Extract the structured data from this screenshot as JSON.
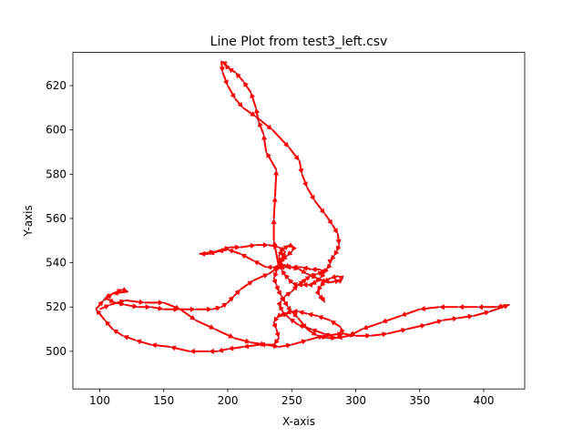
{
  "chart_data": {
    "type": "line",
    "title": "Line Plot from test3_left.csv",
    "xlabel": "X-axis",
    "ylabel": "Y-axis",
    "xlim": [
      79,
      432
    ],
    "ylim": [
      483,
      635
    ],
    "xticks": [
      100,
      150,
      200,
      250,
      300,
      350,
      400
    ],
    "yticks": [
      500,
      520,
      540,
      560,
      580,
      600,
      620
    ],
    "grid": false,
    "legend": "none",
    "line_color": "#1f77b4",
    "arrow_color": "#ff0000",
    "series": [
      {
        "x": [
          100,
          108,
          120,
          135,
          150,
          163,
          175,
          190,
          205,
          218,
          230,
          240,
          250,
          262,
          275,
          290,
          300,
          312,
          325,
          340,
          355,
          368,
          380,
          392,
          405,
          420,
          410,
          395,
          380,
          365,
          350,
          335,
          320,
          305,
          295,
          285,
          275,
          265,
          255,
          248,
          243,
          240,
          242,
          245,
          250,
          255,
          260,
          262,
          265,
          270,
          275,
          272,
          265,
          258,
          250,
          245,
          240,
          238,
          235,
          230,
          220,
          210,
          200,
          192,
          185,
          178,
          190,
          202,
          210,
          222,
          232,
          240,
          245,
          242,
          240,
          238,
          236,
          238,
          240,
          242,
          245,
          247,
          250,
          255,
          262,
          270,
          278,
          285,
          290,
          288,
          280,
          270,
          262,
          255,
          250,
          245,
          240,
          238,
          236,
          238,
          240,
          236,
          225,
          212,
          200,
          192,
          185,
          170,
          155,
          140,
          128,
          118,
          110,
          104,
          97,
          103,
          110,
          118,
          122,
          110,
          104,
          112,
          120,
          130,
          140,
          150,
          162,
          175,
          188,
          195,
          200,
          205,
          210,
          220,
          232,
          240,
          236,
          236,
          237,
          238,
          230,
          228,
          224,
          222,
          218,
          212,
          206,
          200,
          198,
          195,
          196,
          200,
          206,
          212,
          222,
          235,
          248,
          256,
          258,
          262,
          268,
          276,
          282,
          286,
          287,
          285,
          283,
          280,
          280,
          277,
          275,
          272,
          268,
          265,
          262,
          258,
          254,
          250,
          247,
          244,
          242,
          241,
          240,
          243,
          248,
          252,
          250,
          246,
          242,
          240,
          244,
          250,
          256,
          262,
          270,
          278,
          288,
          290,
          286,
          280,
          275,
          272,
          270,
          272,
          275,
          276
        ],
        "y": [
          519,
          521,
          523,
          522,
          522,
          519,
          514,
          510,
          506,
          504,
          503,
          502,
          503,
          505,
          507,
          508,
          507,
          507,
          508,
          510,
          512,
          514,
          515,
          516,
          518,
          521,
          520,
          520,
          520,
          520,
          519,
          516,
          513,
          510,
          507,
          506,
          508,
          510,
          512,
          515,
          518,
          521,
          523,
          525,
          527,
          530,
          532,
          533,
          534,
          535,
          536,
          537,
          537,
          538,
          538,
          538,
          538,
          538,
          538,
          538,
          541,
          544,
          546,
          545,
          544,
          544,
          545,
          547,
          547,
          548,
          548,
          547,
          545,
          542,
          539,
          536,
          533,
          530,
          527,
          525,
          522,
          520,
          518,
          515,
          510,
          507,
          506,
          506,
          508,
          511,
          514,
          516,
          517,
          518,
          518,
          517,
          516,
          515,
          513,
          510,
          506,
          503,
          503,
          502,
          501,
          500,
          500,
          500,
          502,
          503,
          505,
          507,
          510,
          514,
          519,
          523,
          526,
          528,
          527,
          526,
          524,
          522,
          521,
          520,
          520,
          519,
          519,
          519,
          519,
          520,
          522,
          525,
          528,
          532,
          535,
          538,
          550,
          560,
          570,
          582,
          590,
          598,
          604,
          610,
          617,
          622,
          626,
          628,
          630,
          631,
          626,
          620,
          614,
          610,
          606,
          600,
          592,
          586,
          580,
          574,
          568,
          562,
          557,
          553,
          548,
          545,
          543,
          541,
          539,
          537,
          535,
          533,
          531,
          530,
          530,
          530,
          530,
          531,
          533,
          535,
          537,
          540,
          543,
          546,
          548,
          547,
          545,
          543,
          541,
          540,
          539,
          538,
          537,
          535,
          533,
          531,
          532,
          533,
          534,
          533,
          531,
          529,
          527,
          525,
          523,
          522
        ]
      }
    ]
  }
}
